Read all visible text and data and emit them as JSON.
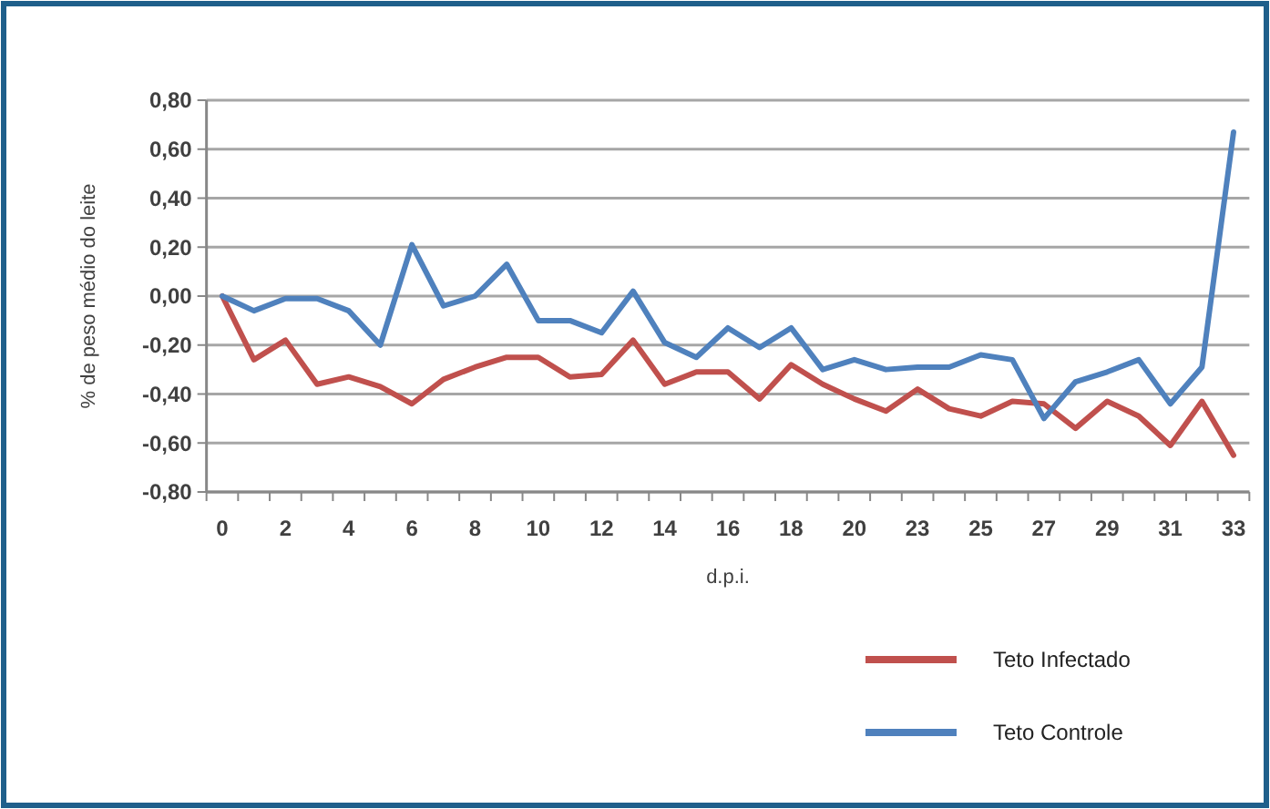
{
  "chart_data": {
    "type": "line",
    "xlabel": "d.p.i.",
    "ylabel": "% de peso médio do leite",
    "categories": [
      "0",
      null,
      "2",
      null,
      "4",
      null,
      "6",
      null,
      "8",
      null,
      "10",
      null,
      "12",
      null,
      "14",
      null,
      "16",
      null,
      "18",
      null,
      "20",
      null,
      "23",
      null,
      "25",
      null,
      "27",
      null,
      "29",
      null,
      "31",
      null,
      "33"
    ],
    "series": [
      {
        "name": "Teto Infectado",
        "color": "#c0504d",
        "values": [
          0,
          -0.26,
          -0.18,
          -0.36,
          -0.33,
          -0.37,
          -0.44,
          -0.34,
          -0.29,
          -0.25,
          -0.25,
          -0.33,
          -0.32,
          -0.18,
          -0.36,
          -0.31,
          -0.31,
          -0.42,
          -0.28,
          -0.36,
          -0.42,
          -0.47,
          -0.38,
          -0.46,
          -0.49,
          -0.43,
          -0.44,
          -0.54,
          -0.43,
          -0.49,
          -0.61,
          -0.43,
          -0.65
        ]
      },
      {
        "name": "Teto Controle",
        "color": "#4f81bd",
        "values": [
          0,
          -0.06,
          -0.01,
          -0.01,
          -0.06,
          -0.2,
          0.21,
          -0.04,
          0,
          0.13,
          -0.1,
          -0.1,
          -0.15,
          0.02,
          -0.19,
          -0.25,
          -0.13,
          -0.21,
          -0.13,
          -0.3,
          -0.26,
          -0.3,
          -0.29,
          -0.29,
          -0.24,
          -0.26,
          -0.5,
          -0.35,
          -0.31,
          -0.26,
          -0.44,
          -0.29,
          0.67
        ]
      }
    ],
    "ylim": [
      -0.8,
      0.8
    ],
    "yticks": [
      {
        "value": -0.8,
        "label": "-0,80"
      },
      {
        "value": -0.6,
        "label": "-0,60"
      },
      {
        "value": -0.4,
        "label": "-0,40"
      },
      {
        "value": -0.2,
        "label": "-0,20"
      },
      {
        "value": 0,
        "label": "0,00"
      },
      {
        "value": 0.2,
        "label": "0,20"
      },
      {
        "value": 0.4,
        "label": "0,40"
      },
      {
        "value": 0.6,
        "label": "0,60"
      },
      {
        "value": 0.8,
        "label": "0,80"
      }
    ],
    "grid": "y",
    "legend": "bottom right",
    "marker": "none",
    "line_style": "solid"
  }
}
